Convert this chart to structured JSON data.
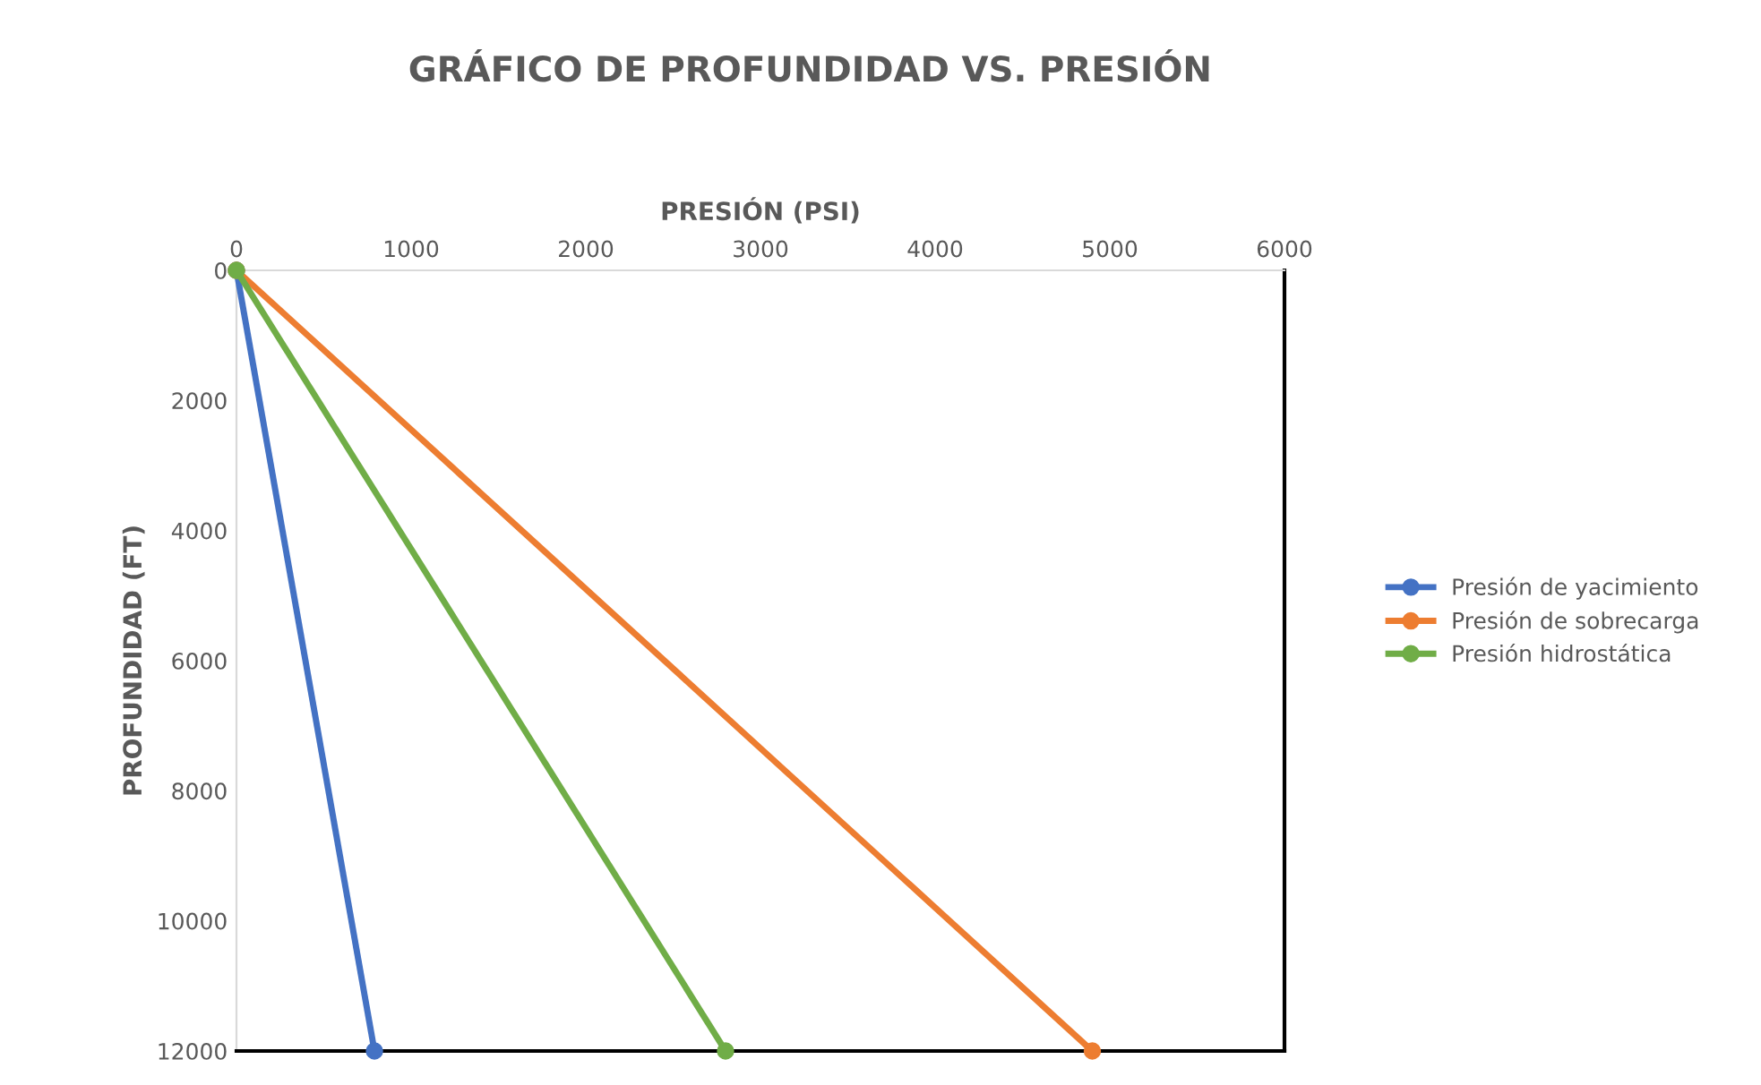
{
  "chart_data": {
    "type": "line",
    "title": "GRÁFICO DE PROFUNDIDAD VS. PRESIÓN",
    "xlabel": "PRESIÓN (PSI)",
    "ylabel": "PROFUNDIDAD (FT)",
    "series": [
      {
        "name": "Presión de yacimiento",
        "color": "#4472c4",
        "x": [
          0,
          790
        ],
        "values": [
          0,
          12000
        ]
      },
      {
        "name": "Presión de sobrecarga",
        "color": "#ed7d31",
        "x": [
          0,
          4900
        ],
        "values": [
          0,
          12000
        ]
      },
      {
        "name": "Presión hidrostática",
        "color": "#70ad47",
        "x": [
          0,
          2800
        ],
        "values": [
          0,
          12000
        ]
      }
    ],
    "xlim": [
      0,
      6000
    ],
    "xticks": [
      0,
      1000,
      2000,
      3000,
      4000,
      5000,
      6000
    ],
    "ylim": [
      12000,
      0
    ],
    "yticks": [
      0,
      2000,
      4000,
      6000,
      8000,
      10000,
      12000
    ],
    "grid": false,
    "legend": "right",
    "marker": "circle",
    "line_style": "solid"
  }
}
